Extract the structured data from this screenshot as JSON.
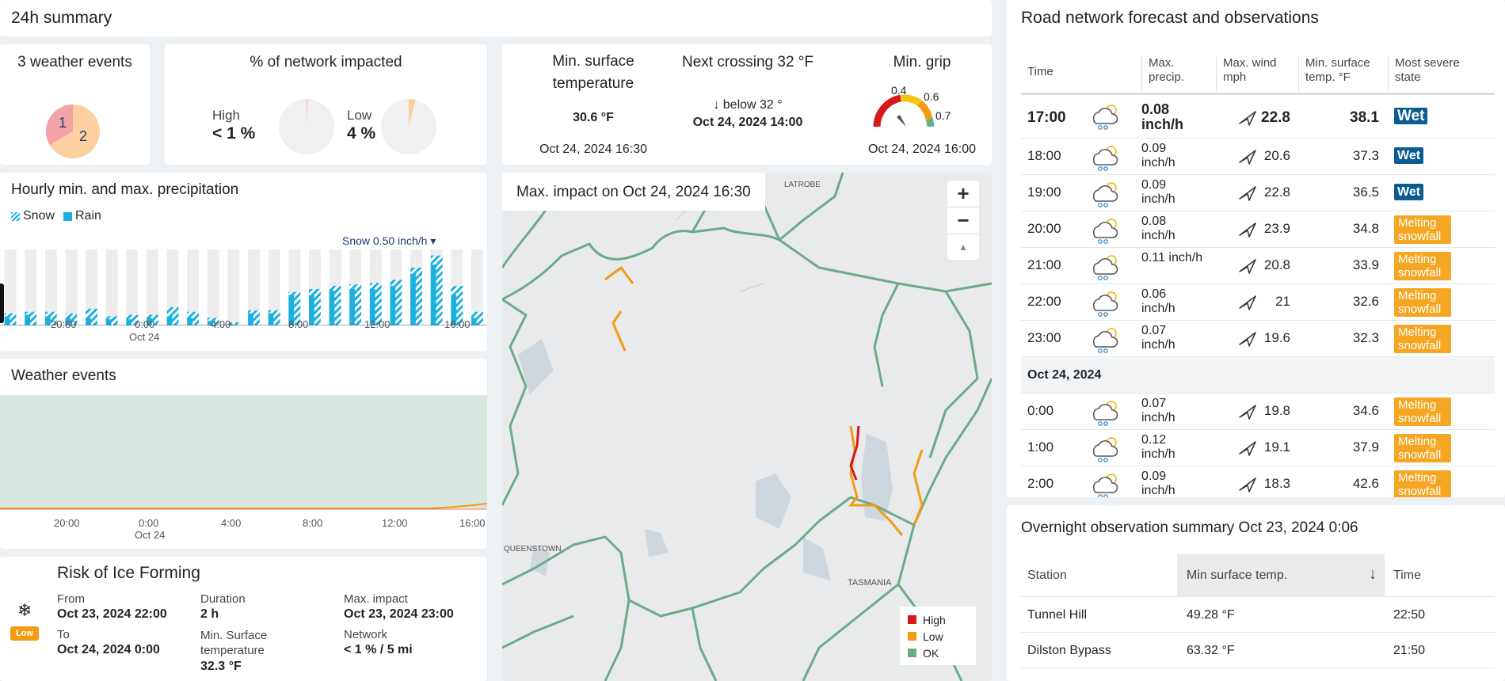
{
  "summary": {
    "title": "24h summary"
  },
  "weather_events_card": {
    "title": "3 weather events",
    "pie_labels": [
      "1",
      "2"
    ],
    "pie": [
      {
        "label": "1",
        "value": 1,
        "color": "#f4a3a8"
      },
      {
        "label": "2",
        "value": 2,
        "color": "#fdd0a2"
      }
    ]
  },
  "network_impact": {
    "title": "% of network impacted",
    "high_label": "High",
    "high_value": "< 1 %",
    "high_fraction": 0.005,
    "low_label": "Low",
    "low_value": "4 %",
    "low_fraction": 0.04
  },
  "min_surface": {
    "title": "Min. surface temperature",
    "value": "30.6 °F",
    "time": "Oct 24, 2024 16:30"
  },
  "next_crossing": {
    "title": "Next crossing 32 °F",
    "direction": "↓ below 32 °",
    "time": "Oct 24, 2024 14:00"
  },
  "min_grip": {
    "title": "Min. grip",
    "gauge_labels": [
      "0.4",
      "0.6",
      "0.7"
    ],
    "time": "Oct 24, 2024 16:00"
  },
  "precip_chart": {
    "title": "Hourly min. and max. precipitation",
    "legend_snow": "Snow",
    "legend_rain": "Rain",
    "selector": "Snow 0.50 inch/h ▾",
    "x_ticks": [
      "20:00",
      "0:00",
      "4:00",
      "8:00",
      "12:00",
      "16:00"
    ],
    "x_sub": "Oct 24"
  },
  "chart_data": {
    "type": "bar",
    "title": "Hourly min. and max. precipitation",
    "categories": [
      "17:00",
      "18:00",
      "19:00",
      "20:00",
      "21:00",
      "22:00",
      "23:00",
      "0:00",
      "1:00",
      "2:00",
      "3:00",
      "4:00",
      "5:00",
      "6:00",
      "7:00",
      "8:00",
      "9:00",
      "10:00",
      "11:00",
      "12:00",
      "13:00",
      "14:00",
      "15:00",
      "16:00"
    ],
    "series": [
      {
        "name": "Snow",
        "values": [
          0.08,
          0.09,
          0.09,
          0.08,
          0.11,
          0.06,
          0.07,
          0.07,
          0.12,
          0.09,
          0.05,
          0.02,
          0.1,
          0.1,
          0.22,
          0.24,
          0.26,
          0.27,
          0.28,
          0.3,
          0.38,
          0.46,
          0.26,
          0.09
        ]
      },
      {
        "name": "Rain",
        "values": [
          0.06,
          0.07,
          0.06,
          0.05,
          0.05,
          0.04,
          0.04,
          0.05,
          0.06,
          0.05,
          0.03,
          0.01,
          0.08,
          0.08,
          0.2,
          0.2,
          0.23,
          0.24,
          0.24,
          0.26,
          0.34,
          0.4,
          0.2,
          0.05
        ]
      }
    ],
    "ylim": [
      0,
      0.5
    ]
  },
  "weather_events_chart": {
    "title": "Weather events",
    "x_ticks": [
      "20:00",
      "0:00",
      "4:00",
      "8:00",
      "12:00",
      "16:00"
    ],
    "x_sub": "Oct 24"
  },
  "ice_risk": {
    "title": "Risk of Ice Forming",
    "badge": "Low",
    "from_label": "From",
    "from_value": "Oct 23, 2024 22:00",
    "to_label": "To",
    "to_value": "Oct 24, 2024 0:00",
    "duration_label": "Duration",
    "duration_value": "2 h",
    "min_surface_label": "Min. Surface temperature",
    "min_surface_value": "32.3 °F",
    "max_impact_label": "Max. impact",
    "max_impact_value": "Oct 23, 2024 23:00",
    "network_label": "Network",
    "network_value": "< 1 % / 5 mi"
  },
  "map": {
    "title": "Max. impact on Oct 24, 2024 16:30",
    "place_labels": [
      "LATROBE",
      "QUEENSTOWN",
      "TASMANIA"
    ],
    "zoom_in": "+",
    "zoom_out": "−",
    "compass": "▲",
    "legend": [
      {
        "label": "High",
        "color": "#d7191c"
      },
      {
        "label": "Low",
        "color": "#f39c12"
      },
      {
        "label": "OK",
        "color": "#6bab8a"
      }
    ]
  },
  "forecast": {
    "title": "Road network forecast and observations",
    "headers": [
      "Time",
      "Max. precip.",
      "Max. wind mph",
      "Min. surface temp. °F",
      "Most severe state"
    ],
    "date_divider": "Oct 24, 2024",
    "rows": [
      {
        "time": "17:00",
        "precip": "0.08 inch/h",
        "wind": "22.8",
        "temp": "38.1",
        "state": "Wet",
        "kind": "wet"
      },
      {
        "time": "18:00",
        "precip": "0.09 inch/h",
        "wind": "20.6",
        "temp": "37.3",
        "state": "Wet",
        "kind": "wet"
      },
      {
        "time": "19:00",
        "precip": "0.09 inch/h",
        "wind": "22.8",
        "temp": "36.5",
        "state": "Wet",
        "kind": "wet"
      },
      {
        "time": "20:00",
        "precip": "0.08 inch/h",
        "wind": "23.9",
        "temp": "34.8",
        "state": "Melting snowfall",
        "kind": "melt"
      },
      {
        "time": "21:00",
        "precip": "0.11 inch/h",
        "wind": "20.8",
        "temp": "33.9",
        "state": "Melting snowfall",
        "kind": "melt"
      },
      {
        "time": "22:00",
        "precip": "0.06 inch/h",
        "wind": "21",
        "temp": "32.6",
        "state": "Melting snowfall",
        "kind": "melt"
      },
      {
        "time": "23:00",
        "precip": "0.07 inch/h",
        "wind": "19.6",
        "temp": "32.3",
        "state": "Melting snowfall",
        "kind": "melt"
      },
      {
        "time": "0:00",
        "precip": "0.07 inch/h",
        "wind": "19.8",
        "temp": "34.6",
        "state": "Melting snowfall",
        "kind": "melt"
      },
      {
        "time": "1:00",
        "precip": "0.12 inch/h",
        "wind": "19.1",
        "temp": "37.9",
        "state": "Melting snowfall",
        "kind": "melt"
      },
      {
        "time": "2:00",
        "precip": "0.09 inch/h",
        "wind": "18.3",
        "temp": "42.6",
        "state": "Melting snowfall",
        "kind": "melt"
      }
    ]
  },
  "overnight": {
    "title": "Overnight observation summary Oct 23, 2024 0:06",
    "headers": [
      "Station",
      "Min surface temp.",
      "Time"
    ],
    "sort_icon": "↓",
    "rows": [
      {
        "station": "Tunnel Hill",
        "temp": "49.28 °F",
        "time": "22:50"
      },
      {
        "station": "Dilston Bypass",
        "temp": "63.32 °F",
        "time": "21:50"
      }
    ]
  }
}
